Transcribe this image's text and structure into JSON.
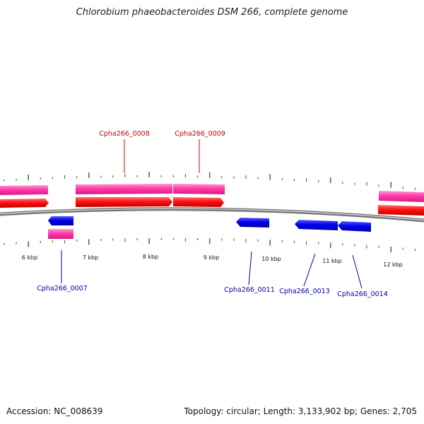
{
  "title": "Chlorobium phaeobacteroides DSM 266, complete genome",
  "footer": {
    "accession": "Accession: NC_008639",
    "summary": "Topology: circular; Length: 3,133,902 bp; Genes: 2,705"
  },
  "colors": {
    "forward_cds": "#ff0000",
    "forward_gene": "#ff3aa8",
    "reverse_cds": "#0000ee",
    "reverse_gene": "#ff3aa8",
    "forward_label": "#cc0000",
    "reverse_label": "#0000aa",
    "backbone": "#808080",
    "ticks": "#2e8b22"
  },
  "scale_labels": [
    "6 kbp",
    "7 kbp",
    "8 kbp",
    "9 kbp",
    "10 kbp",
    "11 kbp",
    "12 kbp"
  ],
  "gene_labels": {
    "forward": [
      "Cpha266_0008",
      "Cpha266_0009"
    ],
    "reverse": [
      "Cpha266_0007",
      "Cpha266_0011",
      "Cpha266_0013",
      "Cpha266_0014"
    ]
  }
}
